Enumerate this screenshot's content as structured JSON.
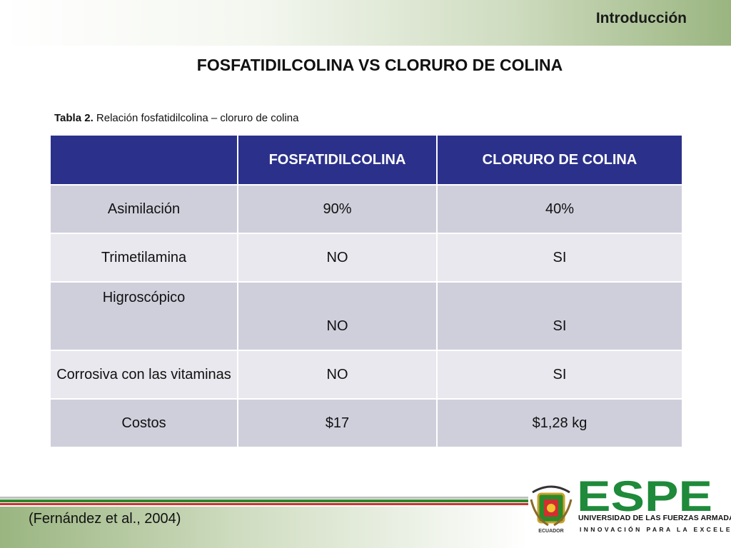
{
  "header": {
    "section_label": "Introducción"
  },
  "slide": {
    "title": "FOSFATIDILCOLINA VS CLORURO DE COLINA"
  },
  "caption": {
    "label": "Tabla 2.",
    "text": " Relación fosfatidilcolina – cloruro de colina"
  },
  "table": {
    "columns": [
      "",
      "FOSFATIDILCOLINA",
      "CLORURO DE COLINA"
    ],
    "rows": [
      [
        "Asimilación",
        "90%",
        "40%"
      ],
      [
        "Trimetilamina",
        "NO",
        "SI"
      ],
      [
        "Higroscópico",
        "NO",
        "SI"
      ],
      [
        "Corrosiva con las vitaminas",
        "NO",
        "SI"
      ],
      [
        "Costos",
        "$17",
        "$1,28 kg"
      ]
    ]
  },
  "footer": {
    "citation": "(Fernández et al., 2004)",
    "logo_text": "ESPE",
    "university_name": "UNIVERSIDAD DE LAS FUERZAS ARMADAS",
    "tagline": "INNOVACIÓN PARA LA EXCELENCIA",
    "seal_text": "ECUADOR"
  },
  "colors": {
    "header_blue": "#2b318a",
    "brand_green": "#1f8a3a",
    "brand_red": "#d03030"
  }
}
